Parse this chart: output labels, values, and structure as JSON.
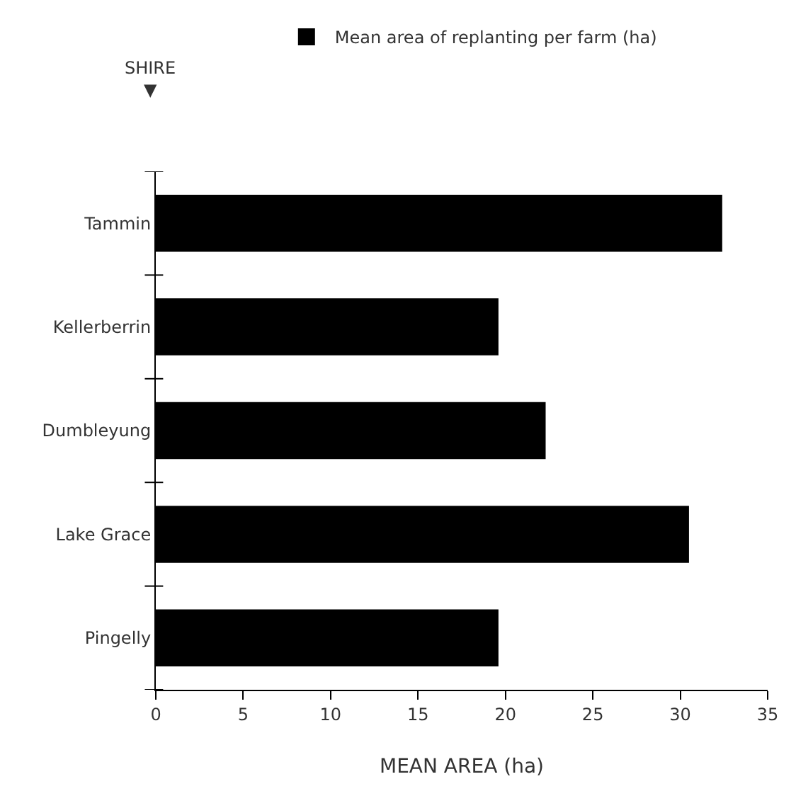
{
  "chart_data": {
    "type": "bar",
    "orientation": "horizontal",
    "categories": [
      "Tammin",
      "Kellerberrin",
      "Dumbleyung",
      "Lake Grace",
      "Pingelly"
    ],
    "series": [
      {
        "name": "Mean area of replanting per farm (ha)",
        "color": "#000000",
        "values": [
          32.4,
          19.6,
          22.3,
          30.5,
          19.6
        ]
      }
    ],
    "xlabel": "MEAN AREA (ha)",
    "ylabel": "SHIRE\n▼",
    "xlim": [
      0,
      35
    ],
    "xticks": [
      0,
      5,
      10,
      15,
      20,
      25,
      30,
      35
    ],
    "legend": "top"
  }
}
